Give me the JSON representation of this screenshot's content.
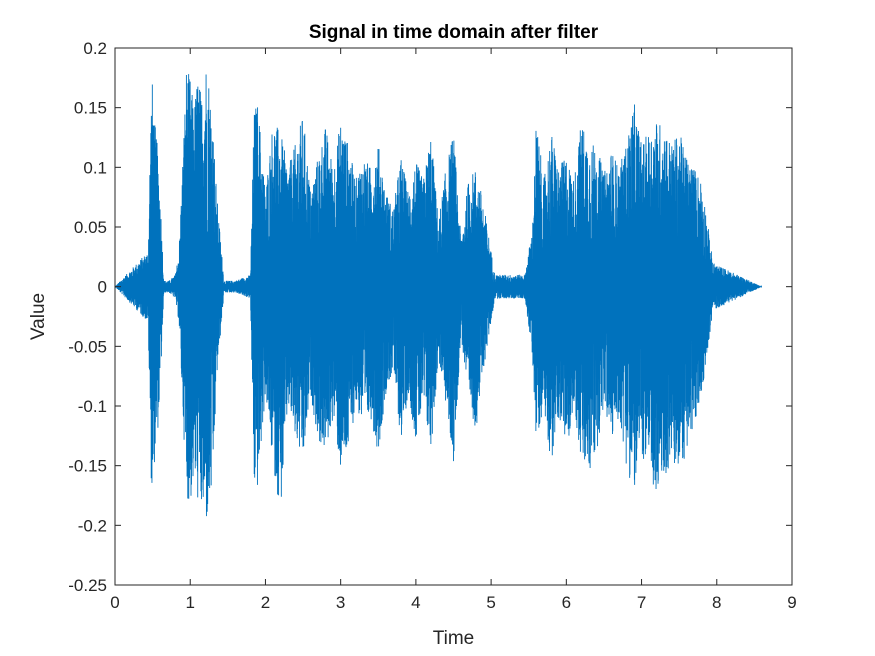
{
  "chart_data": {
    "type": "line",
    "title": "Signal in time domain after filter",
    "xlabel": "Time",
    "ylabel": "Value",
    "xlim": [
      0,
      9
    ],
    "ylim": [
      -0.25,
      0.2
    ],
    "xticks": [
      0,
      1,
      2,
      3,
      4,
      5,
      6,
      7,
      8,
      9
    ],
    "xtick_labels": [
      "0",
      "1",
      "2",
      "3",
      "4",
      "5",
      "6",
      "7",
      "8",
      "9"
    ],
    "yticks": [
      -0.25,
      -0.2,
      -0.15,
      -0.1,
      -0.05,
      0,
      0.05,
      0.1,
      0.15,
      0.2
    ],
    "ytick_labels": [
      "-0.25",
      "-0.2",
      "-0.15",
      "-0.1",
      "-0.05",
      "0",
      "0.05",
      "0.1",
      "0.15",
      "0.2"
    ],
    "grid": false,
    "line_color": "#0072BD",
    "series": [
      {
        "x": [
          0,
          0.44,
          0.48,
          0.5,
          0.52,
          0.55,
          0.6,
          0.65,
          0.72,
          0.8,
          0.85,
          0.95,
          1.0,
          1.05,
          1.1,
          1.15,
          1.22,
          1.3,
          1.35,
          1.45,
          1.6,
          1.8,
          1.85,
          1.9,
          2.0,
          2.1,
          2.2,
          2.3,
          2.4,
          2.5,
          2.6,
          2.7,
          2.8,
          2.9,
          3.0,
          3.1,
          3.2,
          3.3,
          3.4,
          3.5,
          3.6,
          3.7,
          3.8,
          3.9,
          4.0,
          4.1,
          4.2,
          4.3,
          4.4,
          4.5,
          4.6,
          4.7,
          4.8,
          4.9,
          5.05,
          5.45,
          5.55,
          5.6,
          5.7,
          5.8,
          5.9,
          6.0,
          6.1,
          6.2,
          6.3,
          6.4,
          6.5,
          6.6,
          6.7,
          6.8,
          6.9,
          7.0,
          7.1,
          7.2,
          7.3,
          7.4,
          7.5,
          7.6,
          7.7,
          7.8,
          7.95,
          8.6
        ],
        "upper": [
          0,
          0.03,
          0.16,
          0.175,
          0.14,
          0.13,
          0.08,
          0.005,
          0.005,
          0.01,
          0.03,
          0.185,
          0.175,
          0.15,
          0.18,
          0.16,
          0.195,
          0.14,
          0.08,
          0.005,
          0.005,
          0.01,
          0.15,
          0.155,
          0.08,
          0.14,
          0.13,
          0.1,
          0.12,
          0.145,
          0.08,
          0.11,
          0.135,
          0.1,
          0.14,
          0.12,
          0.09,
          0.11,
          0.1,
          0.12,
          0.08,
          0.065,
          0.11,
          0.08,
          0.105,
          0.09,
          0.13,
          0.055,
          0.1,
          0.13,
          0.04,
          0.09,
          0.1,
          0.07,
          0.01,
          0.01,
          0.05,
          0.14,
          0.09,
          0.13,
          0.1,
          0.11,
          0.09,
          0.14,
          0.12,
          0.12,
          0.095,
          0.115,
          0.1,
          0.12,
          0.155,
          0.12,
          0.13,
          0.14,
          0.135,
          0.12,
          0.13,
          0.11,
          0.1,
          0.09,
          0.02,
          0
        ],
        "lower": [
          0,
          -0.03,
          -0.16,
          -0.18,
          -0.15,
          -0.14,
          -0.09,
          -0.005,
          -0.005,
          -0.01,
          -0.03,
          -0.175,
          -0.185,
          -0.16,
          -0.18,
          -0.19,
          -0.2,
          -0.17,
          -0.08,
          -0.005,
          -0.005,
          -0.01,
          -0.17,
          -0.17,
          -0.09,
          -0.15,
          -0.19,
          -0.1,
          -0.13,
          -0.15,
          -0.09,
          -0.13,
          -0.14,
          -0.11,
          -0.155,
          -0.14,
          -0.1,
          -0.12,
          -0.11,
          -0.14,
          -0.09,
          -0.07,
          -0.13,
          -0.09,
          -0.13,
          -0.1,
          -0.14,
          -0.06,
          -0.1,
          -0.15,
          -0.04,
          -0.1,
          -0.12,
          -0.07,
          -0.01,
          -0.01,
          -0.06,
          -0.13,
          -0.1,
          -0.15,
          -0.11,
          -0.14,
          -0.1,
          -0.15,
          -0.16,
          -0.14,
          -0.1,
          -0.13,
          -0.11,
          -0.15,
          -0.175,
          -0.14,
          -0.16,
          -0.18,
          -0.16,
          -0.15,
          -0.155,
          -0.14,
          -0.12,
          -0.09,
          -0.02,
          0
        ]
      }
    ]
  }
}
